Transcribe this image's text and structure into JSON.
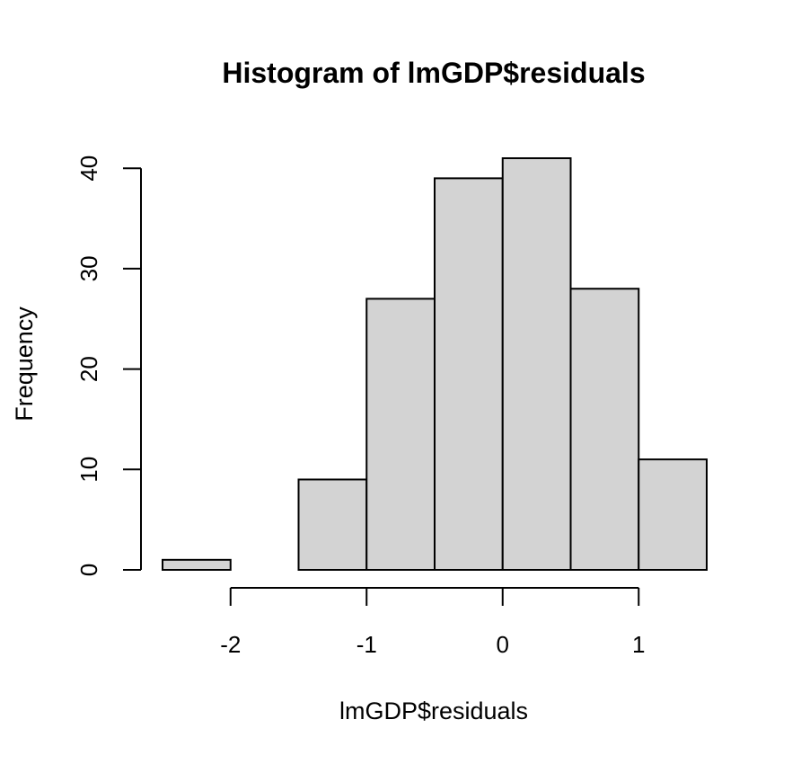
{
  "chart_data": {
    "type": "bar",
    "title": "Histogram of lmGDP$residuals",
    "xlabel": "lmGDP$residuals",
    "ylabel": "Frequency",
    "bins": [
      {
        "start": -2.5,
        "end": -2.0,
        "count": 1
      },
      {
        "start": -2.0,
        "end": -1.5,
        "count": 0
      },
      {
        "start": -1.5,
        "end": -1.0,
        "count": 9
      },
      {
        "start": -1.0,
        "end": -0.5,
        "count": 27
      },
      {
        "start": -0.5,
        "end": 0.0,
        "count": 39
      },
      {
        "start": 0.0,
        "end": 0.5,
        "count": 41
      },
      {
        "start": 0.5,
        "end": 1.0,
        "count": 28
      },
      {
        "start": 1.0,
        "end": 1.5,
        "count": 11
      }
    ],
    "xticks": [
      -2,
      -1,
      0,
      1
    ],
    "xtick_labels": [
      "-2",
      "-1",
      "0",
      "1"
    ],
    "yticks": [
      0,
      10,
      20,
      30,
      40
    ],
    "ytick_labels": [
      "0",
      "10",
      "20",
      "30",
      "40"
    ],
    "xlim": [
      -2.5,
      1.5
    ],
    "ylim": [
      0,
      41
    ],
    "grid": false,
    "colors": {
      "bar_fill": "#d3d3d3",
      "bar_stroke": "#000000"
    }
  }
}
